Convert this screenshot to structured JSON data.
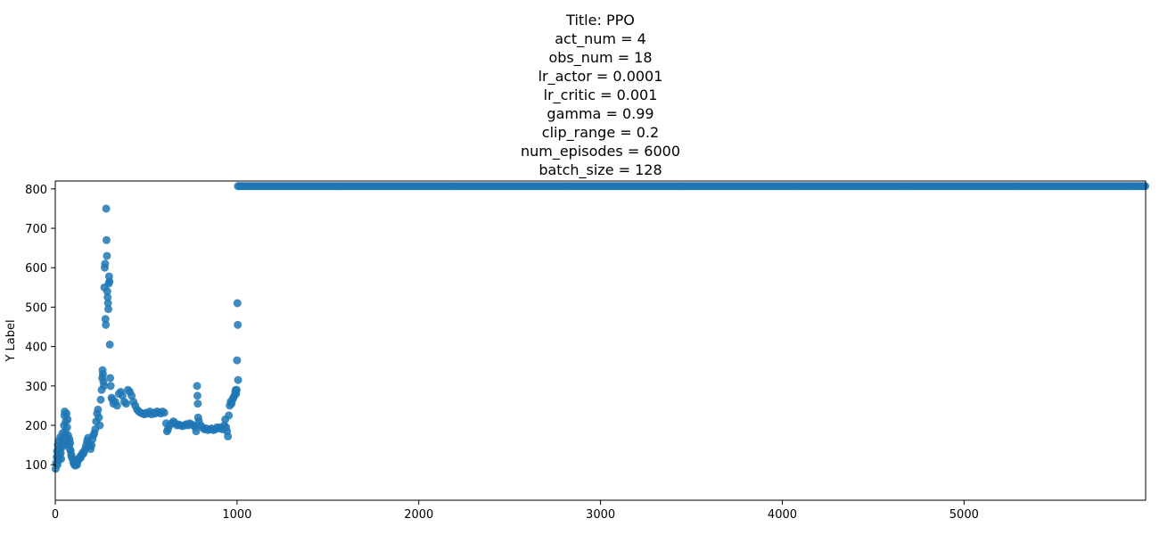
{
  "title_lines": [
    "Title: PPO",
    "act_num = 4",
    "obs_num = 18",
    "lr_actor = 0.0001",
    "lr_critic = 0.001",
    "gamma = 0.99",
    "clip_range = 0.2",
    "num_episodes = 6000",
    "batch_size = 128"
  ],
  "chart_data": {
    "type": "scatter",
    "ylabel": "Y Label",
    "xlabel": "",
    "xlim": [
      0,
      5999
    ],
    "ylim": [
      10,
      820
    ],
    "x_ticks": [
      0,
      1000,
      2000,
      3000,
      4000,
      5000
    ],
    "y_ticks": [
      100,
      200,
      300,
      400,
      500,
      600,
      700,
      800
    ],
    "grid": false,
    "marker_color": "#1f77b4",
    "plateau": {
      "x_start": 1005,
      "x_end": 5999,
      "y": 807
    },
    "points": [
      [
        2,
        90
      ],
      [
        5,
        105
      ],
      [
        8,
        120
      ],
      [
        10,
        135
      ],
      [
        12,
        100
      ],
      [
        14,
        150
      ],
      [
        16,
        118
      ],
      [
        18,
        160
      ],
      [
        20,
        112
      ],
      [
        22,
        140
      ],
      [
        25,
        125
      ],
      [
        28,
        170
      ],
      [
        30,
        130
      ],
      [
        32,
        115
      ],
      [
        35,
        155
      ],
      [
        38,
        145
      ],
      [
        40,
        180
      ],
      [
        42,
        165
      ],
      [
        45,
        150
      ],
      [
        48,
        200
      ],
      [
        50,
        225
      ],
      [
        52,
        235
      ],
      [
        55,
        185
      ],
      [
        58,
        210
      ],
      [
        60,
        170
      ],
      [
        62,
        230
      ],
      [
        65,
        195
      ],
      [
        68,
        215
      ],
      [
        70,
        175
      ],
      [
        72,
        160
      ],
      [
        75,
        150
      ],
      [
        78,
        165
      ],
      [
        80,
        140
      ],
      [
        82,
        155
      ],
      [
        85,
        135
      ],
      [
        88,
        125
      ],
      [
        90,
        120
      ],
      [
        95,
        115
      ],
      [
        100,
        105
      ],
      [
        105,
        100
      ],
      [
        110,
        98
      ],
      [
        115,
        105
      ],
      [
        120,
        100
      ],
      [
        125,
        110
      ],
      [
        130,
        115
      ],
      [
        135,
        120
      ],
      [
        140,
        118
      ],
      [
        145,
        125
      ],
      [
        150,
        130
      ],
      [
        155,
        128
      ],
      [
        160,
        135
      ],
      [
        165,
        140
      ],
      [
        170,
        150
      ],
      [
        175,
        160
      ],
      [
        180,
        168
      ],
      [
        185,
        155
      ],
      [
        190,
        148
      ],
      [
        195,
        140
      ],
      [
        200,
        150
      ],
      [
        205,
        165
      ],
      [
        210,
        175
      ],
      [
        215,
        180
      ],
      [
        220,
        190
      ],
      [
        225,
        210
      ],
      [
        230,
        230
      ],
      [
        235,
        240
      ],
      [
        240,
        220
      ],
      [
        245,
        200
      ],
      [
        250,
        265
      ],
      [
        255,
        290
      ],
      [
        258,
        320
      ],
      [
        260,
        340
      ],
      [
        262,
        330
      ],
      [
        265,
        310
      ],
      [
        268,
        300
      ],
      [
        270,
        550
      ],
      [
        272,
        600
      ],
      [
        274,
        610
      ],
      [
        276,
        470
      ],
      [
        278,
        455
      ],
      [
        280,
        750
      ],
      [
        282,
        670
      ],
      [
        284,
        630
      ],
      [
        286,
        540
      ],
      [
        288,
        525
      ],
      [
        290,
        510
      ],
      [
        292,
        495
      ],
      [
        294,
        560
      ],
      [
        296,
        578
      ],
      [
        298,
        565
      ],
      [
        300,
        405
      ],
      [
        302,
        320
      ],
      [
        305,
        300
      ],
      [
        310,
        270
      ],
      [
        315,
        265
      ],
      [
        320,
        255
      ],
      [
        330,
        260
      ],
      [
        340,
        250
      ],
      [
        350,
        280
      ],
      [
        360,
        285
      ],
      [
        370,
        275
      ],
      [
        380,
        260
      ],
      [
        390,
        255
      ],
      [
        400,
        290
      ],
      [
        410,
        285
      ],
      [
        420,
        275
      ],
      [
        430,
        260
      ],
      [
        440,
        250
      ],
      [
        450,
        240
      ],
      [
        460,
        235
      ],
      [
        470,
        232
      ],
      [
        480,
        230
      ],
      [
        490,
        228
      ],
      [
        500,
        232
      ],
      [
        510,
        230
      ],
      [
        520,
        235
      ],
      [
        530,
        228
      ],
      [
        540,
        232
      ],
      [
        550,
        230
      ],
      [
        560,
        235
      ],
      [
        570,
        233
      ],
      [
        580,
        230
      ],
      [
        590,
        235
      ],
      [
        600,
        232
      ],
      [
        610,
        205
      ],
      [
        615,
        185
      ],
      [
        620,
        190
      ],
      [
        630,
        200
      ],
      [
        640,
        205
      ],
      [
        650,
        210
      ],
      [
        660,
        205
      ],
      [
        670,
        200
      ],
      [
        680,
        202
      ],
      [
        690,
        200
      ],
      [
        700,
        198
      ],
      [
        710,
        200
      ],
      [
        720,
        203
      ],
      [
        730,
        200
      ],
      [
        740,
        205
      ],
      [
        750,
        202
      ],
      [
        760,
        200
      ],
      [
        770,
        195
      ],
      [
        775,
        185
      ],
      [
        780,
        300
      ],
      [
        782,
        275
      ],
      [
        784,
        255
      ],
      [
        786,
        220
      ],
      [
        790,
        210
      ],
      [
        800,
        200
      ],
      [
        810,
        195
      ],
      [
        820,
        190
      ],
      [
        830,
        192
      ],
      [
        840,
        188
      ],
      [
        850,
        190
      ],
      [
        860,
        192
      ],
      [
        870,
        188
      ],
      [
        880,
        190
      ],
      [
        890,
        195
      ],
      [
        900,
        192
      ],
      [
        910,
        195
      ],
      [
        920,
        190
      ],
      [
        930,
        200
      ],
      [
        935,
        215
      ],
      [
        940,
        195
      ],
      [
        945,
        185
      ],
      [
        950,
        172
      ],
      [
        955,
        225
      ],
      [
        960,
        250
      ],
      [
        965,
        260
      ],
      [
        970,
        255
      ],
      [
        975,
        265
      ],
      [
        980,
        270
      ],
      [
        985,
        275
      ],
      [
        990,
        285
      ],
      [
        993,
        290
      ],
      [
        995,
        280
      ],
      [
        998,
        290
      ],
      [
        1000,
        365
      ],
      [
        1002,
        510
      ],
      [
        1004,
        455
      ],
      [
        1006,
        315
      ]
    ]
  }
}
